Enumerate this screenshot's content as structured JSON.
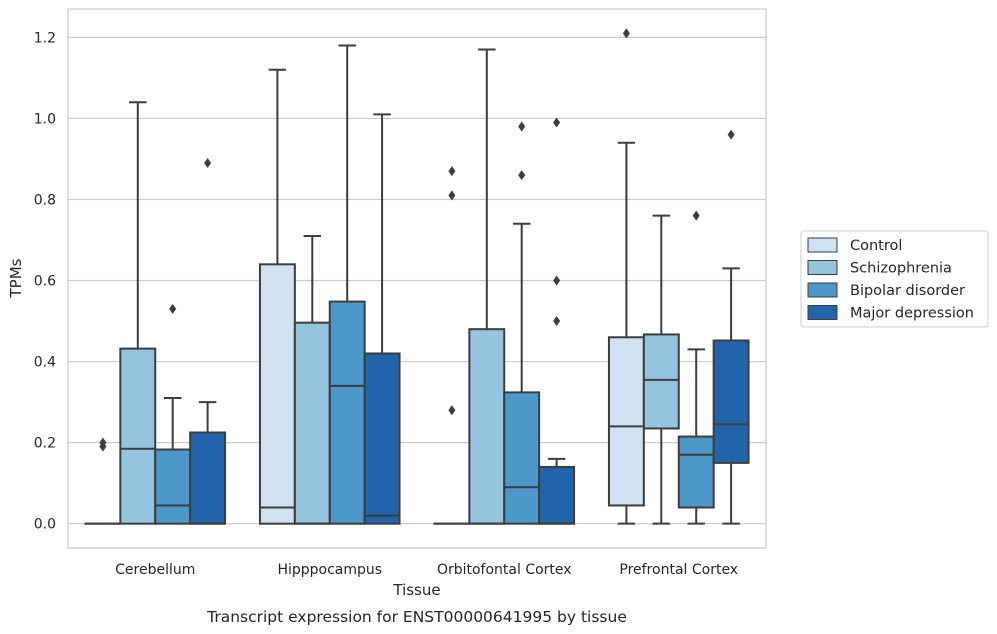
{
  "chart_data": {
    "type": "box",
    "title": "Transcript expression for ENST00000641995 by tissue",
    "xlabel": "Tissue",
    "ylabel": "TPMs",
    "ylim": [
      -0.06,
      1.27
    ],
    "yticks": [
      0.0,
      0.2,
      0.4,
      0.6,
      0.8,
      1.0,
      1.2
    ],
    "ytick_labels": [
      "0.0",
      "0.2",
      "0.4",
      "0.6",
      "0.8",
      "1.0",
      "1.2"
    ],
    "categories": [
      "Cerebellum",
      "Hipppocampus",
      "Orbitofontal Cortex",
      "Prefrontal Cortex"
    ],
    "grid": "horizontal",
    "legend_position": "right",
    "series": [
      {
        "name": "Control",
        "color": "#d0e1f2",
        "boxes": [
          {
            "whislo": 0.0,
            "q1": 0.0,
            "med": 0.0,
            "q3": 0.0,
            "whishi": 0.0,
            "fliers": [
              0.2,
              0.19
            ]
          },
          {
            "whislo": 0.0,
            "q1": 0.0,
            "med": 0.04,
            "q3": 0.64,
            "whishi": 1.12,
            "fliers": []
          },
          {
            "whislo": 0.0,
            "q1": 0.0,
            "med": 0.0,
            "q3": 0.0,
            "whishi": 0.0,
            "fliers": [
              0.28,
              0.81,
              0.87
            ]
          },
          {
            "whislo": 0.0,
            "q1": 0.045,
            "med": 0.24,
            "q3": 0.46,
            "whishi": 0.94,
            "fliers": [
              1.21
            ]
          }
        ]
      },
      {
        "name": "Schizophrenia",
        "color": "#94c4df",
        "boxes": [
          {
            "whislo": 0.0,
            "q1": 0.0,
            "med": 0.185,
            "q3": 0.432,
            "whishi": 1.04,
            "fliers": []
          },
          {
            "whislo": 0.0,
            "q1": 0.0,
            "med": 0.0,
            "q3": 0.496,
            "whishi": 0.71,
            "fliers": []
          },
          {
            "whislo": 0.0,
            "q1": 0.0,
            "med": 0.0,
            "q3": 0.48,
            "whishi": 1.17,
            "fliers": []
          },
          {
            "whislo": 0.0,
            "q1": 0.235,
            "med": 0.355,
            "q3": 0.467,
            "whishi": 0.76,
            "fliers": []
          }
        ]
      },
      {
        "name": "Bipolar disorder",
        "color": "#4b98c9",
        "boxes": [
          {
            "whislo": 0.0,
            "q1": 0.0,
            "med": 0.045,
            "q3": 0.183,
            "whishi": 0.31,
            "fliers": [
              0.53
            ]
          },
          {
            "whislo": 0.0,
            "q1": 0.0,
            "med": 0.34,
            "q3": 0.548,
            "whishi": 1.18,
            "fliers": []
          },
          {
            "whislo": 0.0,
            "q1": 0.0,
            "med": 0.09,
            "q3": 0.324,
            "whishi": 0.74,
            "fliers": [
              0.86,
              0.98
            ]
          },
          {
            "whislo": 0.0,
            "q1": 0.04,
            "med": 0.17,
            "q3": 0.215,
            "whishi": 0.43,
            "fliers": [
              0.76
            ]
          }
        ]
      },
      {
        "name": "Major depression",
        "color": "#2164ab",
        "boxes": [
          {
            "whislo": 0.0,
            "q1": 0.0,
            "med": 0.0,
            "q3": 0.225,
            "whishi": 0.3,
            "fliers": [
              0.89
            ]
          },
          {
            "whislo": 0.0,
            "q1": 0.0,
            "med": 0.02,
            "q3": 0.42,
            "whishi": 1.01,
            "fliers": []
          },
          {
            "whislo": 0.0,
            "q1": 0.0,
            "med": 0.0,
            "q3": 0.14,
            "whishi": 0.16,
            "fliers": [
              0.5,
              0.6,
              0.99
            ]
          },
          {
            "whislo": 0.0,
            "q1": 0.15,
            "med": 0.245,
            "q3": 0.452,
            "whishi": 0.63,
            "fliers": [
              0.96
            ]
          }
        ]
      }
    ]
  }
}
